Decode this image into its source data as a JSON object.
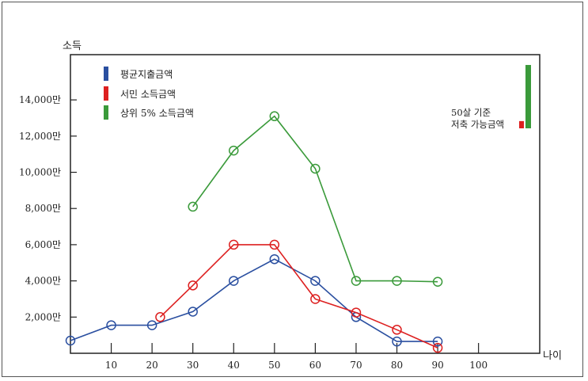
{
  "chart_data": {
    "type": "line",
    "ylabel": "소득",
    "xlabel": "나이",
    "xlim": [
      0,
      115
    ],
    "ylim": [
      0,
      16500
    ],
    "x_ticks": [
      10,
      20,
      30,
      40,
      50,
      60,
      70,
      80,
      90,
      100
    ],
    "x_tick_labels": [
      "10",
      "20",
      "30",
      "40",
      "50",
      "60",
      "70",
      "80",
      "90",
      "100"
    ],
    "y_ticks": [
      2000,
      4000,
      6000,
      8000,
      10000,
      12000,
      14000
    ],
    "y_tick_labels": [
      "2,000만",
      "4,000만",
      "6,000만",
      "8,000만",
      "10,000만",
      "12,000만",
      "14,000만"
    ],
    "grid": false,
    "legend_position": "top-left",
    "series": [
      {
        "name": "평균지출금액",
        "color": "#2a4fa0",
        "x": [
          0,
          10,
          20,
          30,
          40,
          50,
          60,
          70,
          80,
          90
        ],
        "y": [
          700,
          1550,
          1550,
          2300,
          4000,
          5200,
          4000,
          2000,
          650,
          650
        ]
      },
      {
        "name": "서민 소득금액",
        "color": "#dd2020",
        "x": [
          22,
          30,
          40,
          50,
          60,
          70,
          80,
          90
        ],
        "y": [
          2000,
          3750,
          6000,
          6000,
          3000,
          2250,
          1300,
          300
        ]
      },
      {
        "name": "상위 5% 소득금액",
        "color": "#3a9a3a",
        "x": [
          30,
          40,
          50,
          60,
          70,
          80,
          90
        ],
        "y": [
          8100,
          11200,
          13100,
          10200,
          4000,
          4000,
          3950
        ]
      }
    ],
    "annotation": {
      "lines": [
        "50살 기준",
        "저축 가능금액"
      ],
      "bars": [
        {
          "series": "서민 소득금액",
          "color": "#dd2020",
          "value": 400
        },
        {
          "series": "상위 5% 소득금액",
          "color": "#3a9a3a",
          "value": 3500
        }
      ]
    }
  }
}
